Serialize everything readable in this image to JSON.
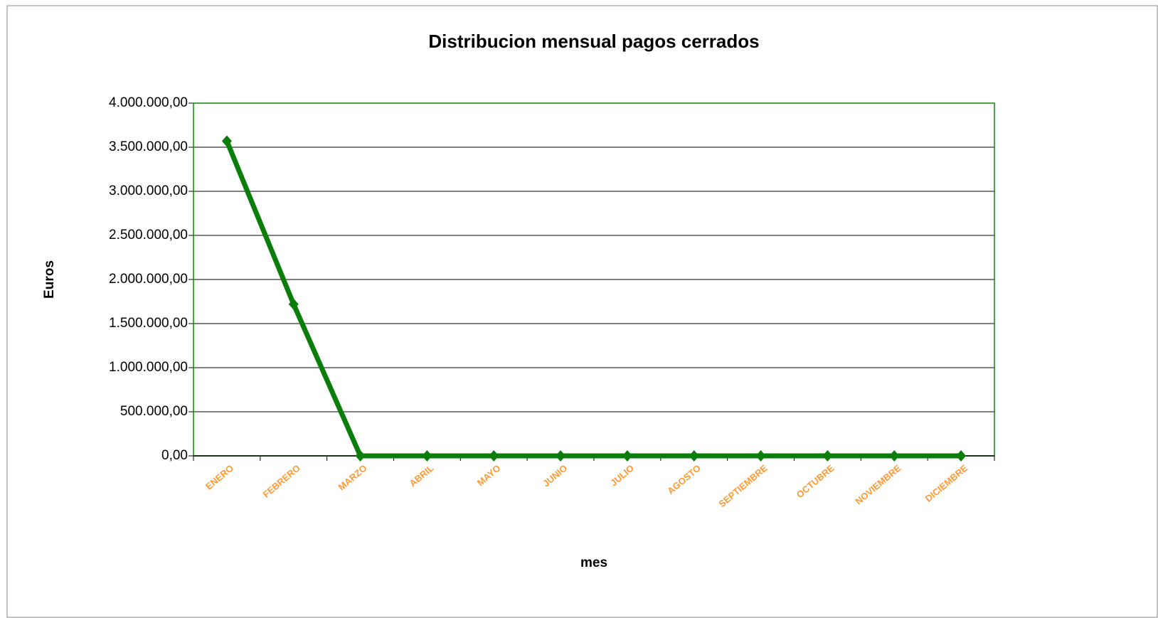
{
  "chart_data": {
    "type": "line",
    "title": "Distribucion mensual pagos cerrados",
    "x_label": "mes",
    "y_label": "Euros",
    "categories": [
      "ENERO",
      "FEBRERO",
      "MARZO",
      "ABRIL",
      "MAYO",
      "JUNIO",
      "JULIO",
      "AGOSTO",
      "SEPTIEMBRE",
      "OCTUBRE",
      "NOVIEMBRE",
      "DICIEMBRE"
    ],
    "series": [
      {
        "name": "pagos cerrados",
        "color": "#0a7d0a",
        "values": [
          3570000,
          1720000,
          0,
          0,
          0,
          0,
          0,
          0,
          0,
          0,
          0,
          0
        ]
      }
    ],
    "ylim": [
      0,
      4000000
    ],
    "yticks": [
      {
        "value": 0,
        "label": "0,00"
      },
      {
        "value": 500000,
        "label": "500.000,00"
      },
      {
        "value": 1000000,
        "label": "1.000.000,00"
      },
      {
        "value": 1500000,
        "label": "1.500.000,00"
      },
      {
        "value": 2000000,
        "label": "2.000.000,00"
      },
      {
        "value": 2500000,
        "label": "2.500.000,00"
      },
      {
        "value": 3000000,
        "label": "3.000.000,00"
      },
      {
        "value": 3500000,
        "label": "3.500.000,00"
      },
      {
        "value": 4000000,
        "label": "4.000.000,00"
      }
    ],
    "grid": true
  }
}
